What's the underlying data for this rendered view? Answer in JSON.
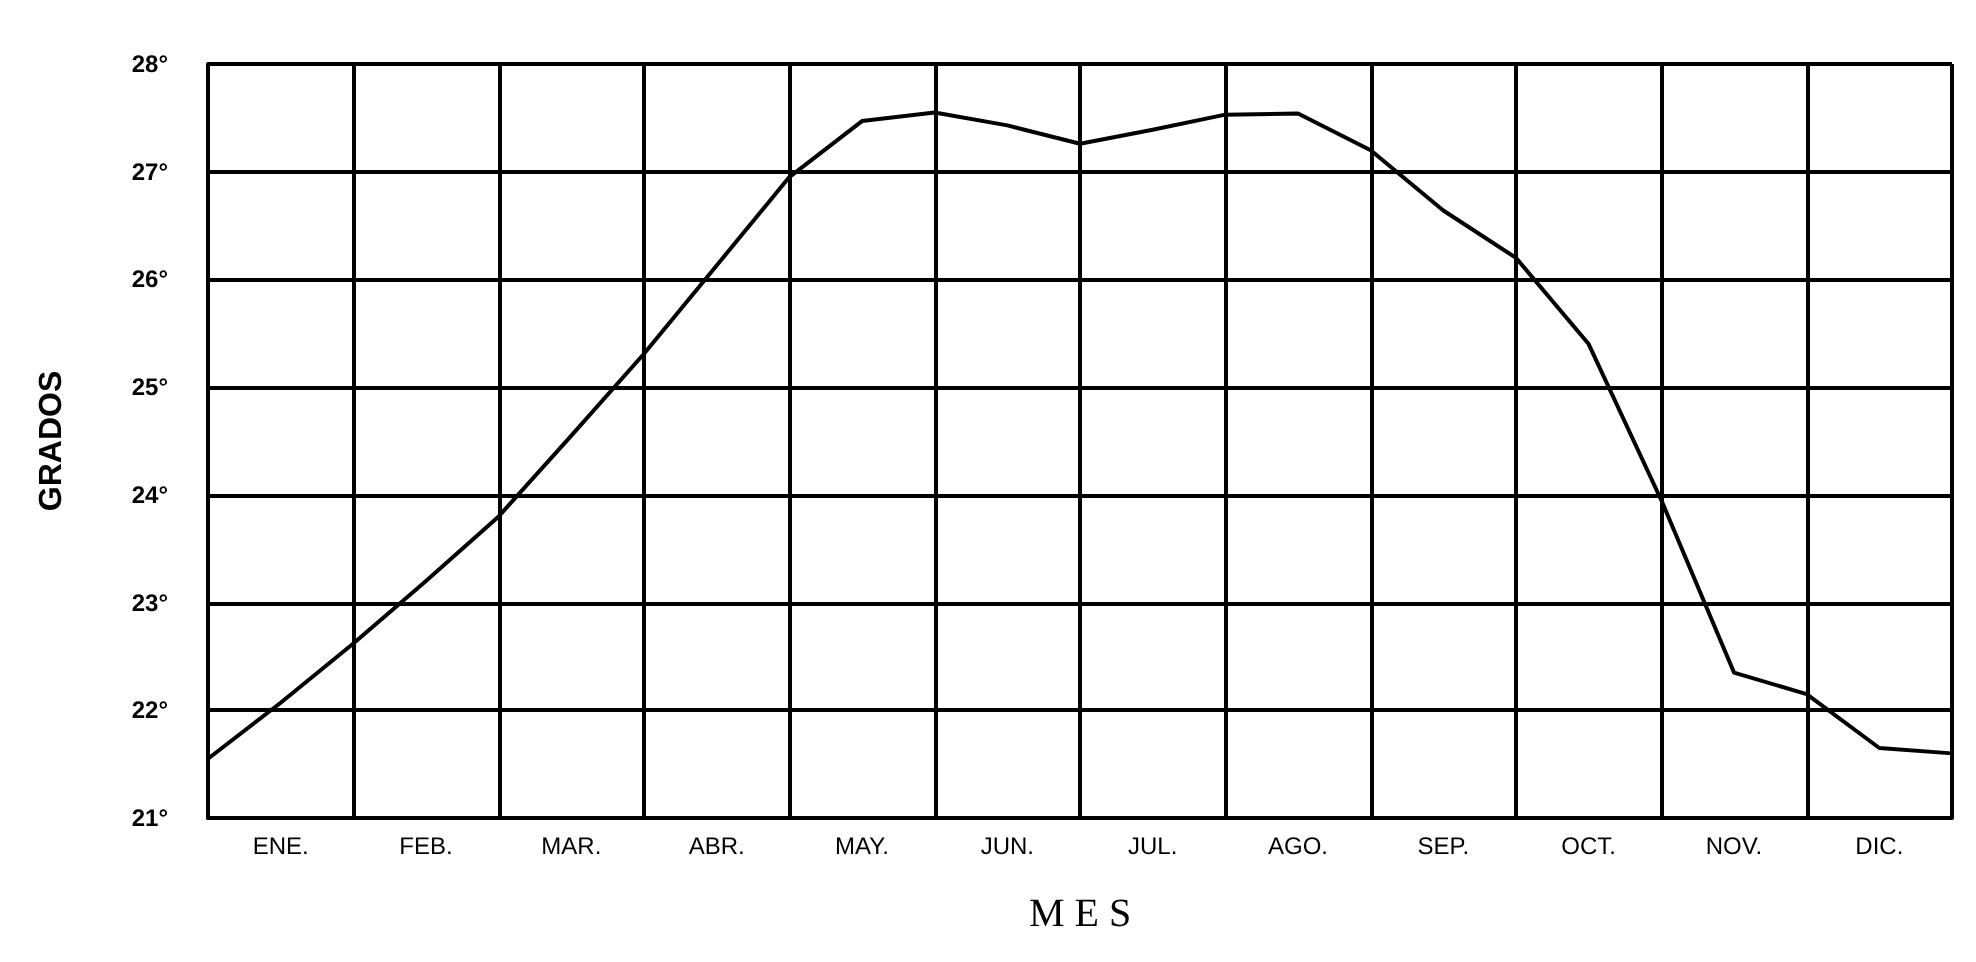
{
  "chart_data": {
    "type": "line",
    "xlabel": "M E S",
    "ylabel": "GRADOS",
    "categories": [
      null,
      "ENE.",
      null,
      "FEB.",
      null,
      "MAR.",
      null,
      "ABR.",
      null,
      "MAY.",
      null,
      "JUN.",
      null,
      "JUL.",
      null,
      "AGO.",
      null,
      "SEP.",
      null,
      "OCT.",
      null,
      "NOV.",
      null,
      "DIC.",
      null
    ],
    "values": [
      21.55,
      22.07,
      22.62,
      23.2,
      23.8,
      24.55,
      25.31,
      26.13,
      26.95,
      27.47,
      27.55,
      27.43,
      27.26,
      27.39,
      27.53,
      27.54,
      27.2,
      26.64,
      26.2,
      25.4,
      23.95,
      22.35,
      22.15,
      21.65,
      21.6
    ],
    "color": "#000000",
    "marker": "none",
    "line_style": "solid",
    "grid": true,
    "ylim": [
      21,
      28
    ],
    "yticks": [
      {
        "value": 21,
        "label": "21°"
      },
      {
        "value": 22,
        "label": "22°"
      },
      {
        "value": 23,
        "label": "23°"
      },
      {
        "value": 24,
        "label": "24°"
      },
      {
        "value": 25,
        "label": "25°"
      },
      {
        "value": 26,
        "label": "26°"
      },
      {
        "value": 27,
        "label": "27°"
      },
      {
        "value": 28,
        "label": "28°"
      }
    ]
  }
}
